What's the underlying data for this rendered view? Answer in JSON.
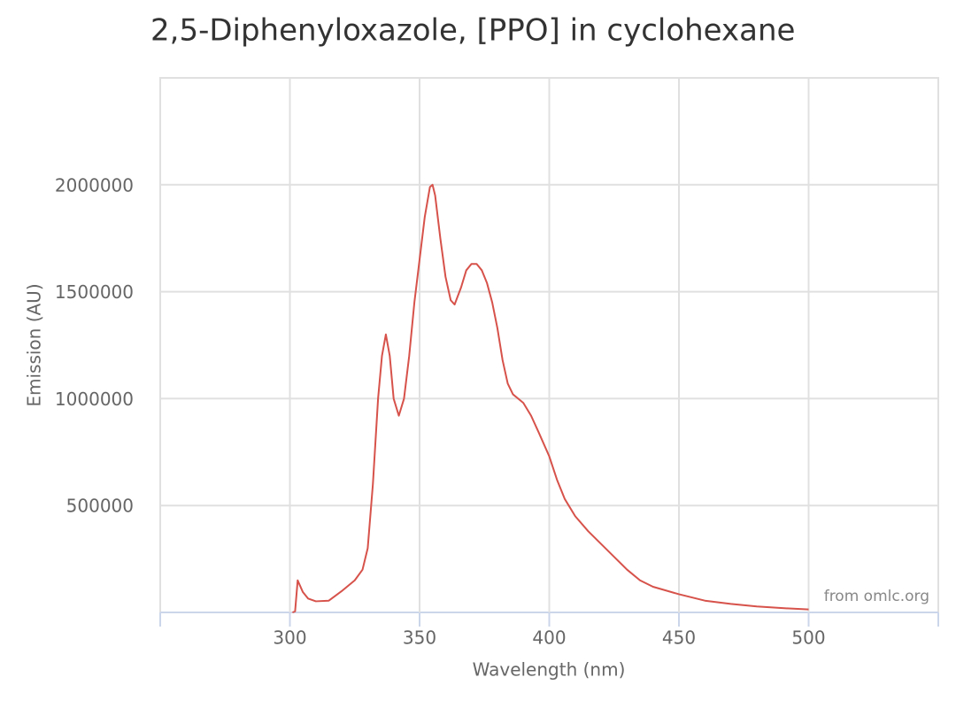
{
  "chart_data": {
    "type": "line",
    "title": "2,5-Diphenyloxazole, [PPO] in cyclohexane",
    "xlabel": "Wavelength (nm)",
    "ylabel": "Emission (AU)",
    "annotation": "from omlc.org",
    "x": [
      301,
      302,
      303,
      305,
      307,
      310,
      315,
      320,
      325,
      328,
      330,
      332,
      334,
      335.5,
      337,
      338.5,
      340,
      342,
      344,
      346,
      348,
      350,
      352,
      354,
      355,
      356,
      358,
      360,
      362,
      363.5,
      366,
      368,
      370,
      372,
      374,
      376,
      378,
      380,
      382,
      384,
      386,
      388,
      390,
      393,
      396,
      400,
      403,
      406,
      410,
      415,
      420,
      425,
      430,
      435,
      440,
      450,
      460,
      470,
      480,
      490,
      500
    ],
    "series": [
      {
        "name": "Emission",
        "color": "#d6524a",
        "values": [
          0,
          5000,
          150000,
          95000,
          65000,
          52000,
          55000,
          100000,
          150000,
          200000,
          300000,
          600000,
          1000000,
          1200000,
          1300000,
          1200000,
          1000000,
          920000,
          1000000,
          1200000,
          1450000,
          1650000,
          1850000,
          1990000,
          2000000,
          1950000,
          1750000,
          1570000,
          1460000,
          1440000,
          1520000,
          1600000,
          1630000,
          1630000,
          1600000,
          1540000,
          1450000,
          1330000,
          1180000,
          1070000,
          1020000,
          1000000,
          980000,
          920000,
          840000,
          730000,
          620000,
          530000,
          450000,
          380000,
          320000,
          260000,
          200000,
          150000,
          120000,
          85000,
          55000,
          40000,
          28000,
          20000,
          14000
        ]
      }
    ],
    "xlim": [
      250,
      550
    ],
    "ylim": [
      0,
      2500000
    ],
    "xticks": [
      300,
      350,
      400,
      450,
      500
    ],
    "yticks": [
      500000,
      1000000,
      1500000,
      2000000
    ],
    "grid": true
  }
}
